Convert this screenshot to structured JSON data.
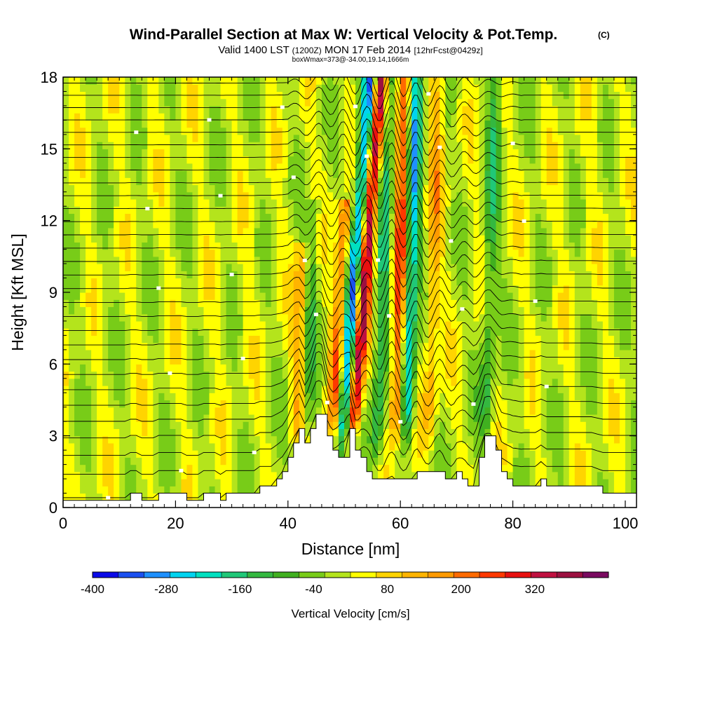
{
  "chart_data": {
    "type": "heatmap",
    "title": "Wind-Parallel Section at Max W: Vertical Velocity & Pot.Temp.",
    "title_mark": "(C)",
    "subtitle_parts": [
      "Valid 1400 LST",
      "(1200Z)",
      "MON 17 Feb 2014",
      "[12hrFcst@0429z]"
    ],
    "subsubtitle": "boxWmax=373@-34.00,19.14,1666m",
    "xlabel": "Distance [nm]",
    "ylabel": "Height [Kft MSL]",
    "xlim": [
      0,
      102
    ],
    "ylim": [
      0,
      18
    ],
    "x_ticks": [
      0,
      20,
      40,
      60,
      80,
      100
    ],
    "y_ticks": [
      0,
      3,
      6,
      9,
      12,
      15,
      18
    ],
    "colorbar": {
      "label": "Vertical Velocity [cm/s]",
      "tick_labels": [
        "-400",
        "-280",
        "-160",
        "-40",
        "80",
        "200",
        "320"
      ],
      "tick_values": [
        -400,
        -280,
        -160,
        -40,
        80,
        200,
        320
      ],
      "range": [
        -400,
        440
      ],
      "colors": [
        "#0a0ae8",
        "#1a50f0",
        "#1e90ff",
        "#00d4f0",
        "#00e0c0",
        "#20c878",
        "#34b840",
        "#40b020",
        "#78cc18",
        "#b4e41c",
        "#ffff00",
        "#ffd400",
        "#ffb400",
        "#ff9a00",
        "#ff6a00",
        "#ff3800",
        "#e81010",
        "#c01040",
        "#9c1040",
        "#7a0a60"
      ]
    },
    "terrain_kft": [
      [
        0,
        0.3
      ],
      [
        2,
        0.3
      ],
      [
        4,
        0.3
      ],
      [
        6,
        0.3
      ],
      [
        8,
        0.3
      ],
      [
        10,
        0.3
      ],
      [
        11,
        0.3
      ],
      [
        12,
        0.6
      ],
      [
        13,
        0.6
      ],
      [
        14,
        0.3
      ],
      [
        16,
        0.3
      ],
      [
        17,
        0.6
      ],
      [
        18,
        0.6
      ],
      [
        19,
        0.6
      ],
      [
        20,
        0.6
      ],
      [
        21,
        0.6
      ],
      [
        22,
        0.3
      ],
      [
        24,
        0.3
      ],
      [
        25,
        0.6
      ],
      [
        26,
        0.6
      ],
      [
        27,
        0.6
      ],
      [
        28,
        0.3
      ],
      [
        29,
        0.6
      ],
      [
        30,
        0.6
      ],
      [
        32,
        0.6
      ],
      [
        34,
        0.6
      ],
      [
        35,
        0.9
      ],
      [
        37,
        0.9
      ],
      [
        38,
        1.2
      ],
      [
        39,
        1.5
      ],
      [
        40,
        2.1
      ],
      [
        41,
        2.7
      ],
      [
        42,
        3.3
      ],
      [
        43,
        2.7
      ],
      [
        44,
        3.3
      ],
      [
        45,
        3.9
      ],
      [
        46,
        3.9
      ],
      [
        47,
        3.0
      ],
      [
        48,
        2.4
      ],
      [
        49,
        2.1
      ],
      [
        50,
        2.1
      ],
      [
        51,
        3.3
      ],
      [
        52,
        2.4
      ],
      [
        53,
        2.1
      ],
      [
        54,
        1.5
      ],
      [
        55,
        1.2
      ],
      [
        56,
        1.2
      ],
      [
        58,
        1.2
      ],
      [
        60,
        1.2
      ],
      [
        62,
        1.2
      ],
      [
        63,
        1.5
      ],
      [
        64,
        1.5
      ],
      [
        66,
        1.5
      ],
      [
        67,
        1.5
      ],
      [
        68,
        1.2
      ],
      [
        69,
        1.2
      ],
      [
        70,
        1.5
      ],
      [
        71,
        1.2
      ],
      [
        72,
        0.9
      ],
      [
        73,
        0.9
      ],
      [
        74,
        2.1
      ],
      [
        75,
        3.0
      ],
      [
        76,
        3.0
      ],
      [
        77,
        2.4
      ],
      [
        78,
        1.5
      ],
      [
        79,
        1.2
      ],
      [
        80,
        0.9
      ],
      [
        82,
        0.9
      ],
      [
        84,
        0.9
      ],
      [
        85,
        1.2
      ],
      [
        86,
        0.9
      ],
      [
        88,
        0.9
      ],
      [
        90,
        0.9
      ],
      [
        94,
        0.9
      ],
      [
        96,
        0.6
      ],
      [
        98,
        0.6
      ],
      [
        100,
        0.6
      ],
      [
        102,
        0.6
      ]
    ],
    "w_field_features_cm_s": [
      {
        "x": 52,
        "y_range": [
          2.5,
          18
        ],
        "tilt_nm": 6,
        "w": -320
      },
      {
        "x": 54,
        "y_range": [
          3,
          18
        ],
        "tilt_nm": 6,
        "w": 360
      },
      {
        "x": 49,
        "y_range": [
          3,
          12
        ],
        "tilt_nm": 4,
        "w": 200
      },
      {
        "x": 57,
        "y_range": [
          2,
          18
        ],
        "tilt_nm": 3,
        "w": -160
      },
      {
        "x": 62,
        "y_range": [
          3,
          18
        ],
        "tilt_nm": 2,
        "w": -260
      },
      {
        "x": 60,
        "y_range": [
          3,
          18
        ],
        "tilt_nm": 2,
        "w": 240
      },
      {
        "x": 66,
        "y_range": [
          3,
          18
        ],
        "tilt_nm": 2,
        "w": 120
      },
      {
        "x": 76,
        "y_range": [
          3,
          18
        ],
        "tilt_nm": 2,
        "w": -120
      },
      {
        "x": 44,
        "y_range": [
          3,
          12
        ],
        "tilt_nm": 2,
        "w": -90
      },
      {
        "x": 42,
        "y_range": [
          3,
          10
        ],
        "tilt_nm": 2,
        "w": 120
      }
    ],
    "theta_contours": {
      "levels": 30,
      "note": "potential temperature isentropes (thin black lines)"
    }
  }
}
